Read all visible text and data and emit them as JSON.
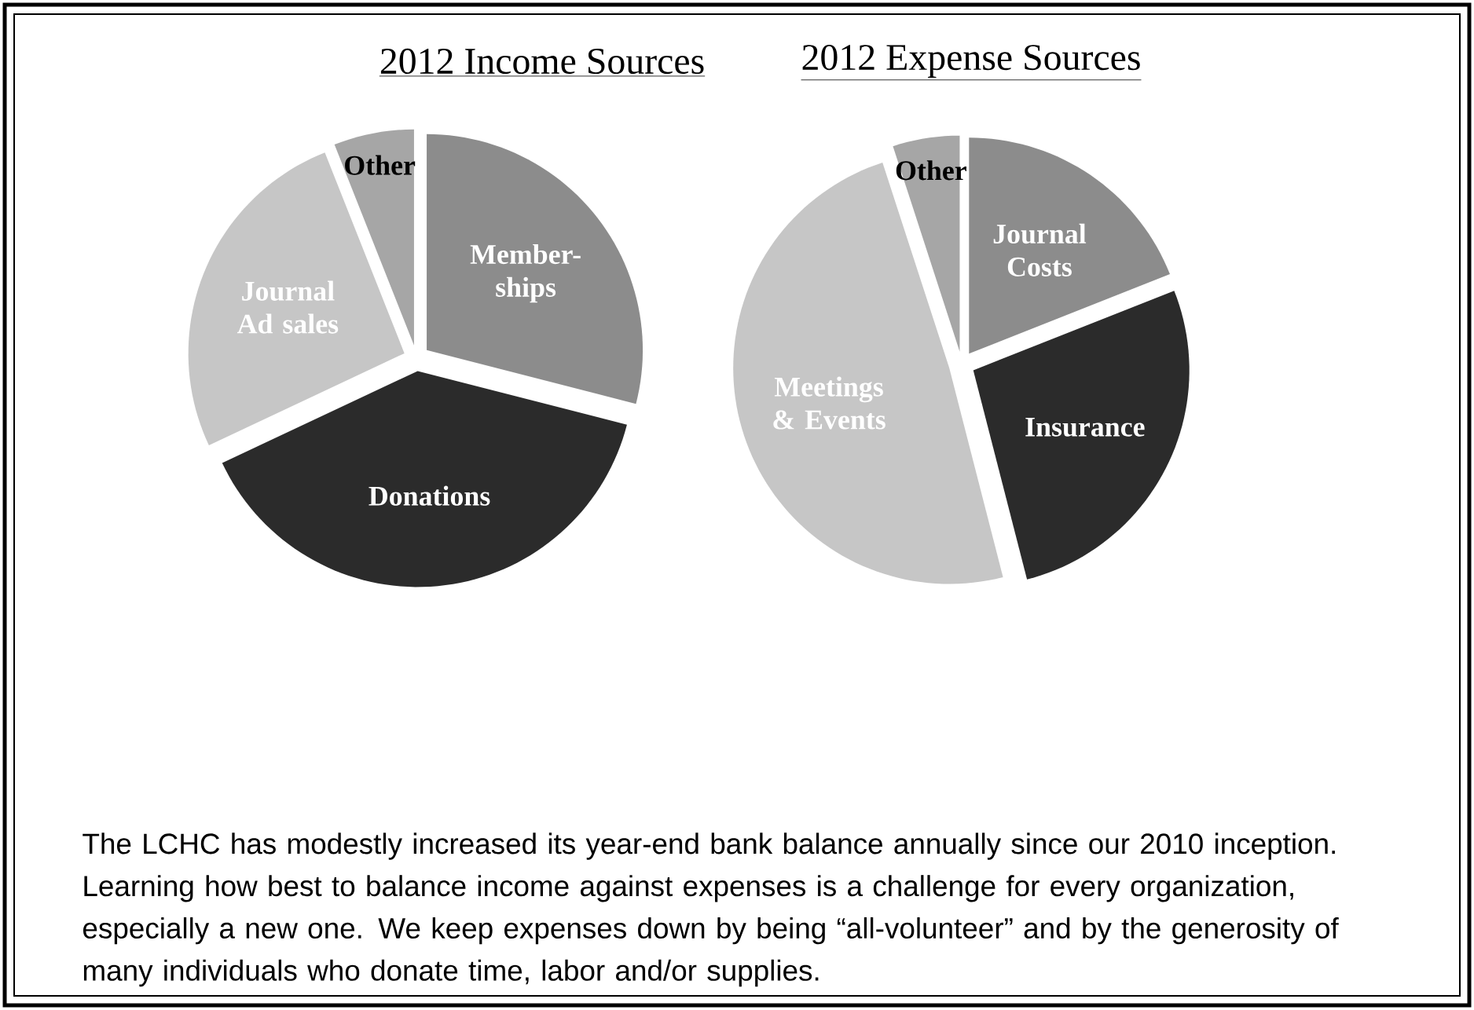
{
  "chart_data": [
    {
      "type": "pie",
      "title": "2012 Income Sources",
      "categories": [
        "Member-ships",
        "Donations",
        "Journal Ad sales",
        "Other"
      ],
      "values": [
        29,
        39,
        26,
        6
      ],
      "colors": [
        "#8c8c8c",
        "#2b2b2b",
        "#c6c6c6",
        "#a6a6a6"
      ]
    },
    {
      "type": "pie",
      "title": "2012 Expense Sources",
      "categories": [
        "Journal Costs",
        "Insurance",
        "Meetings & Events",
        "Other"
      ],
      "values": [
        19,
        27,
        49,
        5
      ],
      "colors": [
        "#8c8c8c",
        "#2b2b2b",
        "#c6c6c6",
        "#a6a6a6"
      ]
    },
    {
      "type": "other",
      "annotations": [
        "The LCHC has modestly increased its year-end bank balance annually since our 2010 inception. Learning how best to balance income against expenses is a challenge for every organization, especially a new one. We keep expenses down by being “all-volunteer” and by the generosity of many individuals who donate time, labor and/or supplies."
      ]
    }
  ]
}
